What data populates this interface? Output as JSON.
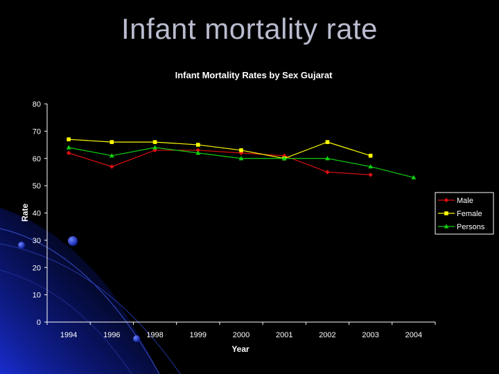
{
  "slide": {
    "title": "Infant mortality rate"
  },
  "colors": {
    "background": "#000000",
    "title_text": "#b9bccf",
    "decor_blue": "#1a2fd9",
    "male": "#e01010",
    "female": "#ffff00",
    "persons": "#10d010"
  },
  "chart_data": {
    "type": "line",
    "title": "Infant Mortality Rates by Sex Gujarat",
    "xlabel": "Year",
    "ylabel": "Rate",
    "categories": [
      "1994",
      "1996",
      "1998",
      "1999",
      "2000",
      "2001",
      "2002",
      "2003",
      "2004"
    ],
    "ylim": [
      0,
      80
    ],
    "yticks": [
      0,
      10,
      20,
      30,
      40,
      50,
      60,
      70,
      80
    ],
    "grid": false,
    "legend_position": "right",
    "series": [
      {
        "name": "Male",
        "marker": "diamond",
        "color": "#e01010",
        "values": [
          62,
          57,
          63,
          63,
          62,
          61,
          55,
          54,
          null
        ]
      },
      {
        "name": "Female",
        "marker": "square",
        "color": "#ffff00",
        "values": [
          67,
          66,
          66,
          65,
          63,
          60,
          66,
          61,
          null
        ]
      },
      {
        "name": "Persons",
        "marker": "triangle",
        "color": "#10d010",
        "values": [
          64,
          61,
          64,
          62,
          60,
          60,
          60,
          57,
          53
        ]
      }
    ]
  }
}
